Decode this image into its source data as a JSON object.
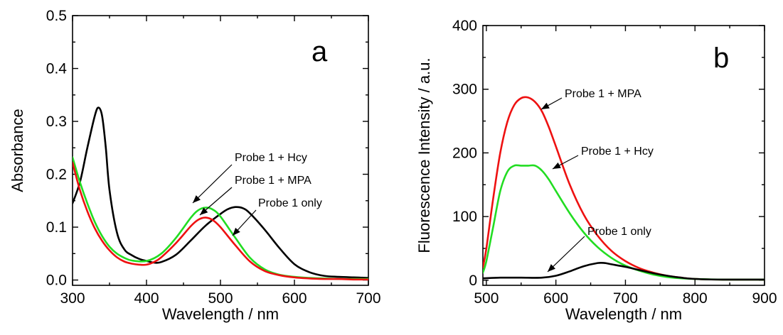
{
  "chart_data": [
    {
      "type": "line",
      "panel_label": "a",
      "xlabel": "Wavelength / nm",
      "ylabel": "Absorbance",
      "xlim": [
        300,
        700
      ],
      "ylim": [
        -0.01,
        0.5
      ],
      "xticks": [
        300,
        400,
        500,
        600,
        700
      ],
      "yticks": [
        0.0,
        0.1,
        0.2,
        0.3,
        0.4,
        0.5
      ],
      "ytick_labels": [
        "0.0",
        "0.1",
        "0.2",
        "0.3",
        "0.4",
        "0.5"
      ],
      "series": [
        {
          "name": "Probe 1 only",
          "color": "#000000",
          "x": [
            300,
            310,
            320,
            330,
            335,
            340,
            345,
            350,
            360,
            370,
            380,
            390,
            400,
            410,
            420,
            440,
            460,
            480,
            500,
            510,
            520,
            530,
            540,
            560,
            580,
            600,
            620,
            640,
            660,
            680,
            700
          ],
          "y": [
            0.145,
            0.185,
            0.25,
            0.31,
            0.326,
            0.31,
            0.25,
            0.17,
            0.09,
            0.058,
            0.047,
            0.04,
            0.036,
            0.033,
            0.034,
            0.048,
            0.075,
            0.103,
            0.125,
            0.134,
            0.138,
            0.136,
            0.126,
            0.095,
            0.06,
            0.03,
            0.015,
            0.008,
            0.006,
            0.005,
            0.004
          ]
        },
        {
          "name": "Probe 1 + Hcy",
          "color": "#22dd22",
          "x": [
            300,
            310,
            320,
            330,
            340,
            350,
            360,
            370,
            380,
            400,
            420,
            440,
            460,
            470,
            480,
            490,
            500,
            520,
            540,
            560,
            580,
            600,
            620,
            640,
            660,
            680,
            700
          ],
          "y": [
            0.232,
            0.185,
            0.145,
            0.11,
            0.083,
            0.063,
            0.05,
            0.042,
            0.037,
            0.036,
            0.05,
            0.08,
            0.118,
            0.132,
            0.137,
            0.133,
            0.12,
            0.08,
            0.042,
            0.02,
            0.01,
            0.006,
            0.004,
            0.003,
            0.002,
            0.002,
            0.002
          ]
        },
        {
          "name": "Probe 1 + MPA",
          "color": "#ee1111",
          "x": [
            300,
            310,
            320,
            330,
            340,
            350,
            360,
            370,
            380,
            390,
            400,
            410,
            420,
            440,
            460,
            470,
            480,
            490,
            500,
            520,
            540,
            560,
            580,
            600,
            620,
            640,
            660,
            680,
            700
          ],
          "y": [
            0.222,
            0.17,
            0.13,
            0.098,
            0.074,
            0.056,
            0.043,
            0.035,
            0.031,
            0.029,
            0.029,
            0.034,
            0.043,
            0.07,
            0.102,
            0.114,
            0.118,
            0.113,
            0.1,
            0.066,
            0.035,
            0.017,
            0.009,
            0.005,
            0.003,
            0.002,
            0.002,
            0.001,
            0.001
          ]
        }
      ],
      "annotations": [
        {
          "text": "Probe 1 + Hcy",
          "series": "Probe 1 + Hcy"
        },
        {
          "text": "Probe 1 + MPA",
          "series": "Probe 1 + MPA"
        },
        {
          "text": "Probe 1 only",
          "series": "Probe 1 only"
        }
      ]
    },
    {
      "type": "line",
      "panel_label": "b",
      "xlabel": "Wavelength / nm",
      "ylabel": "Fluorescence Intensity / a.u.",
      "xlim": [
        495,
        900
      ],
      "ylim": [
        -8,
        400
      ],
      "xticks": [
        500,
        600,
        700,
        800,
        900
      ],
      "yticks": [
        0,
        100,
        200,
        300,
        400
      ],
      "ytick_labels": [
        "0",
        "100",
        "200",
        "300",
        "400"
      ],
      "series": [
        {
          "name": "Probe 1 + MPA",
          "color": "#ee1111",
          "x": [
            495,
            500,
            510,
            520,
            530,
            540,
            550,
            560,
            570,
            580,
            590,
            600,
            620,
            640,
            660,
            680,
            700,
            720,
            740,
            760,
            780,
            800,
            840,
            900
          ],
          "y": [
            20,
            50,
            130,
            200,
            248,
            275,
            286,
            287,
            280,
            265,
            240,
            210,
            150,
            103,
            70,
            46,
            30,
            19,
            12,
            7,
            4,
            2,
            1,
            1
          ]
        },
        {
          "name": "Probe 1 + Hcy",
          "color": "#22dd22",
          "x": [
            495,
            500,
            510,
            520,
            530,
            540,
            550,
            560,
            570,
            580,
            590,
            600,
            620,
            640,
            660,
            680,
            700,
            720,
            740,
            760,
            780,
            800,
            840,
            900
          ],
          "y": [
            12,
            30,
            85,
            140,
            170,
            180,
            180,
            180,
            180,
            172,
            158,
            140,
            105,
            75,
            52,
            35,
            23,
            15,
            9,
            5,
            3,
            2,
            1,
            1
          ]
        },
        {
          "name": "Probe 1 only",
          "color": "#000000",
          "x": [
            495,
            520,
            550,
            580,
            600,
            620,
            640,
            660,
            670,
            680,
            700,
            720,
            740,
            760,
            780,
            800,
            840,
            900
          ],
          "y": [
            3,
            4,
            4,
            4,
            7,
            14,
            22,
            27,
            27,
            25,
            21,
            16,
            11,
            7,
            4,
            2,
            1,
            1
          ]
        }
      ],
      "annotations": [
        {
          "text": "Probe 1 + MPA",
          "series": "Probe 1 + MPA"
        },
        {
          "text": "Probe 1 + Hcy",
          "series": "Probe 1 + Hcy"
        },
        {
          "text": "Probe 1 only",
          "series": "Probe 1 only"
        }
      ]
    }
  ]
}
